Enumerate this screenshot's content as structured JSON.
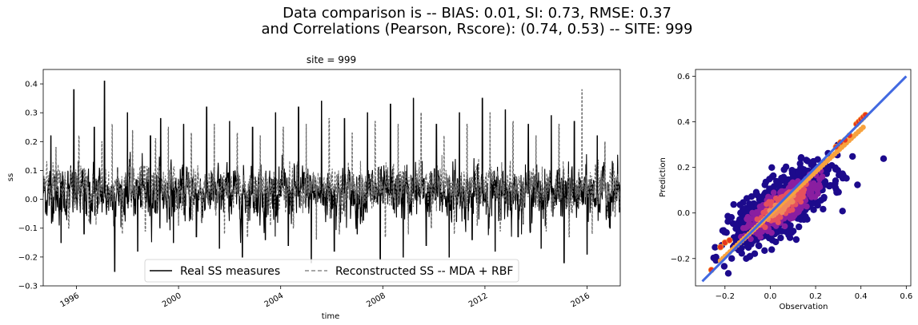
{
  "figure": {
    "suptitle_line1": "Data comparison is   --   BIAS: 0.01, SI: 0.73, RMSE: 0.37",
    "suptitle_line2": "and Correlations (Pearson, Rscore): (0.74, 0.53) -- SITE: 999"
  },
  "chart_data": [
    {
      "type": "line",
      "title": "site = 999",
      "xlabel": "time",
      "ylabel": "ss",
      "xlim": [
        1994.7,
        2017.3
      ],
      "ylim": [
        -0.3,
        0.45
      ],
      "x_ticks": [
        "1996",
        "2000",
        "2004",
        "2008",
        "2012",
        "2016"
      ],
      "y_ticks": [
        "−0.3",
        "−0.2",
        "−0.1",
        "0.0",
        "0.1",
        "0.2",
        "0.3",
        "0.4"
      ],
      "series": [
        {
          "name": "Real SS measures",
          "style": "solid",
          "color": "#000000",
          "x": [
            1995.0,
            1995.4,
            1995.9,
            1996.3,
            1996.7,
            1997.1,
            1997.5,
            1998.0,
            1998.4,
            1998.9,
            1999.3,
            1999.8,
            2000.2,
            2000.7,
            2001.1,
            2001.6,
            2002.0,
            2002.5,
            2002.9,
            2003.4,
            2003.8,
            2004.3,
            2004.7,
            2005.2,
            2005.6,
            2006.1,
            2006.5,
            2007.0,
            2007.4,
            2007.9,
            2008.3,
            2008.8,
            2009.2,
            2009.7,
            2010.1,
            2010.6,
            2011.0,
            2011.5,
            2011.9,
            2012.4,
            2012.8,
            2013.3,
            2013.7,
            2014.2,
            2014.6,
            2015.1,
            2015.5,
            2016.0,
            2016.4,
            2016.9
          ],
          "y": [
            0.22,
            -0.15,
            0.38,
            -0.12,
            0.25,
            0.41,
            -0.25,
            0.3,
            -0.18,
            0.22,
            0.28,
            -0.15,
            0.26,
            -0.13,
            0.32,
            -0.17,
            0.27,
            -0.2,
            0.25,
            -0.14,
            0.3,
            -0.16,
            0.32,
            -0.22,
            0.34,
            -0.18,
            0.28,
            -0.12,
            0.3,
            -0.21,
            0.33,
            -0.2,
            0.35,
            -0.16,
            0.26,
            -0.2,
            0.3,
            -0.14,
            0.35,
            -0.18,
            0.31,
            -0.13,
            0.26,
            -0.17,
            0.29,
            -0.22,
            0.27,
            -0.19,
            0.22,
            -0.1
          ]
        },
        {
          "name": "Reconstructed SS -- MDA + RBF",
          "style": "dashed",
          "color": "#6b6b6b",
          "x": [
            1995.2,
            1995.7,
            1996.1,
            1996.5,
            1997.0,
            1997.4,
            1997.8,
            1998.2,
            1998.7,
            1999.1,
            1999.6,
            2000.0,
            2000.5,
            2000.9,
            2001.4,
            2001.8,
            2002.3,
            2002.7,
            2003.2,
            2003.6,
            2004.1,
            2004.5,
            2005.0,
            2005.4,
            2005.9,
            2006.3,
            2006.8,
            2007.2,
            2007.7,
            2008.1,
            2008.6,
            2009.0,
            2009.5,
            2009.9,
            2010.4,
            2010.8,
            2011.3,
            2011.7,
            2012.2,
            2012.6,
            2013.1,
            2013.5,
            2014.0,
            2014.4,
            2014.9,
            2015.3,
            2015.8,
            2016.2,
            2016.7,
            2017.1
          ],
          "y": [
            0.18,
            -0.1,
            0.22,
            -0.08,
            0.2,
            0.26,
            -0.12,
            0.24,
            -0.11,
            0.21,
            0.25,
            -0.09,
            0.23,
            -0.08,
            0.26,
            -0.12,
            0.23,
            -0.13,
            0.22,
            -0.09,
            0.25,
            -0.1,
            0.26,
            -0.14,
            0.28,
            -0.12,
            0.23,
            -0.08,
            0.27,
            -0.13,
            0.26,
            -0.12,
            0.3,
            -0.1,
            0.22,
            -0.12,
            0.26,
            -0.09,
            0.3,
            -0.11,
            0.27,
            -0.08,
            0.22,
            -0.11,
            0.26,
            -0.13,
            0.38,
            -0.12,
            0.2,
            -0.06
          ]
        }
      ],
      "legend": {
        "location": "lower center",
        "ncol": 2
      }
    },
    {
      "type": "scatter",
      "xlabel": "Observation",
      "ylabel": "Prediction",
      "xlim": [
        -0.33,
        0.62
      ],
      "ylim": [
        -0.32,
        0.63
      ],
      "x_ticks": [
        "−0.2",
        "0.0",
        "0.2",
        "0.4",
        "0.6"
      ],
      "y_ticks": [
        "−0.2",
        "0.0",
        "0.2",
        "0.4",
        "0.6"
      ],
      "colormap": "plasma",
      "points_cloud_center": [
        0.05,
        0.03
      ],
      "points_cloud_extent": {
        "x": [
          -0.27,
          0.43
        ],
        "y": [
          -0.26,
          0.43
        ]
      },
      "upper_tail_points": [
        [
          0.29,
          0.29
        ],
        [
          0.31,
          0.31
        ],
        [
          0.33,
          0.32
        ],
        [
          0.35,
          0.34
        ],
        [
          0.38,
          0.39
        ],
        [
          0.39,
          0.4
        ],
        [
          0.4,
          0.41
        ],
        [
          0.41,
          0.42
        ],
        [
          0.42,
          0.43
        ]
      ],
      "lower_tail_points": [
        [
          -0.26,
          -0.25
        ],
        [
          -0.22,
          -0.15
        ],
        [
          -0.2,
          -0.13
        ],
        [
          -0.18,
          -0.12
        ]
      ],
      "reference_line": {
        "x": [
          -0.3,
          0.6
        ],
        "y": [
          -0.3,
          0.6
        ],
        "color": "#4169e1"
      }
    }
  ],
  "colors": {
    "real": "#000000",
    "reconstructed": "#6b6b6b",
    "diag_line": "#4169e1",
    "scatter_outer": "#1c0a8c",
    "scatter_mid": "#8a1ea0",
    "scatter_inner": "#e5505e",
    "scatter_core": "#f7a23e"
  }
}
